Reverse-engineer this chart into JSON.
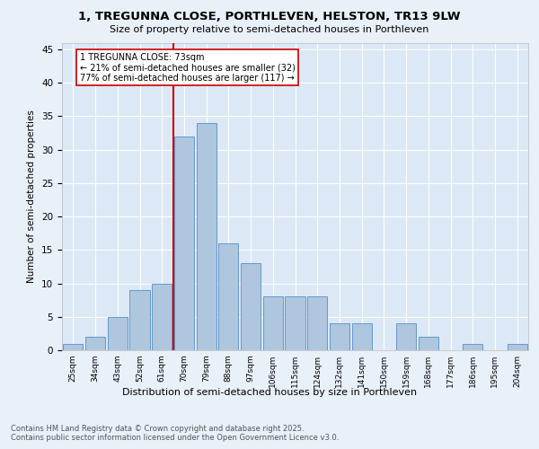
{
  "title_line1": "1, TREGUNNA CLOSE, PORTHLEVEN, HELSTON, TR13 9LW",
  "title_line2": "Size of property relative to semi-detached houses in Porthleven",
  "xlabel": "Distribution of semi-detached houses by size in Porthleven",
  "ylabel": "Number of semi-detached properties",
  "bar_labels": [
    "25sqm",
    "34sqm",
    "43sqm",
    "52sqm",
    "61sqm",
    "70sqm",
    "79sqm",
    "88sqm",
    "97sqm",
    "106sqm",
    "115sqm",
    "124sqm",
    "132sqm",
    "141sqm",
    "150sqm",
    "159sqm",
    "168sqm",
    "177sqm",
    "186sqm",
    "195sqm",
    "204sqm"
  ],
  "bar_values": [
    1,
    2,
    5,
    9,
    10,
    32,
    34,
    16,
    13,
    8,
    8,
    8,
    4,
    4,
    0,
    4,
    2,
    0,
    1,
    0,
    1
  ],
  "bar_color": "#aec6de",
  "bar_edge_color": "#6699cc",
  "highlight_line_color": "#cc0000",
  "annotation_text": "1 TREGUNNA CLOSE: 73sqm\n← 21% of semi-detached houses are smaller (32)\n77% of semi-detached houses are larger (117) →",
  "annotation_box_color": "#ffffff",
  "annotation_box_edge_color": "#cc0000",
  "footer_text": "Contains HM Land Registry data © Crown copyright and database right 2025.\nContains public sector information licensed under the Open Government Licence v3.0.",
  "ylim": [
    0,
    46
  ],
  "background_color": "#e8f0f8",
  "plot_background_color": "#dce8f5",
  "highlight_line_index": 4.5
}
